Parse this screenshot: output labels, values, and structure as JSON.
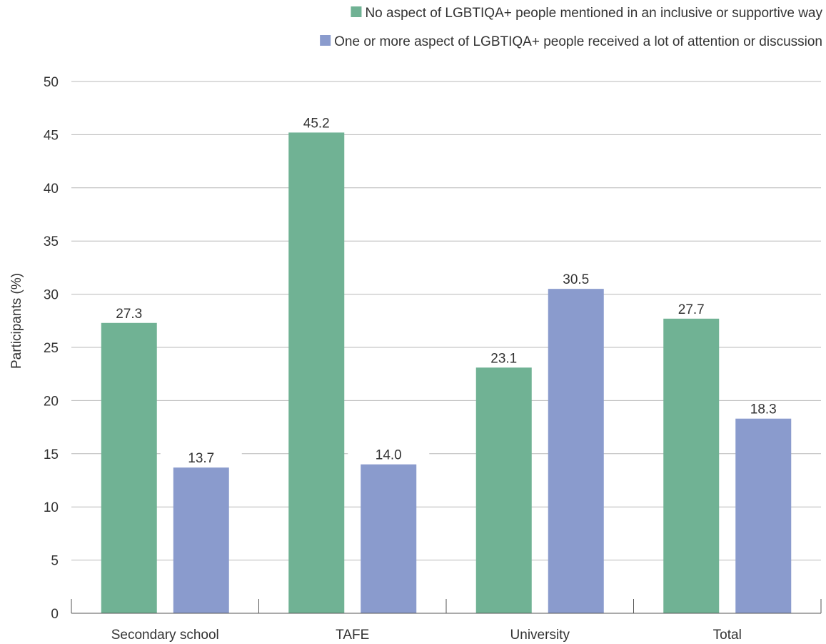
{
  "chart_data": {
    "type": "bar",
    "title": "",
    "xlabel": "",
    "ylabel": "Participants (%)",
    "ylim": [
      0,
      50
    ],
    "yticks": [
      0,
      5,
      10,
      15,
      20,
      25,
      30,
      35,
      40,
      45,
      50
    ],
    "grid": true,
    "legend_position": "top-right",
    "categories": [
      "Secondary school",
      "TAFE",
      "University",
      "Total"
    ],
    "series": [
      {
        "name": "No aspect of LGBTIQA+ people mentioned in an inclusive or supportive way",
        "color": "#70b294",
        "values": [
          27.3,
          45.2,
          23.1,
          27.7
        ],
        "labels": [
          "27.3",
          "45.2",
          "23.1",
          "27.7"
        ]
      },
      {
        "name": "One or more aspect of LGBTIQA+ people received a lot of attention or discussion",
        "color": "#8a9bcd",
        "values": [
          13.7,
          14.0,
          30.5,
          18.3
        ],
        "labels": [
          "13.7",
          "14.0",
          "30.5",
          "18.3"
        ]
      }
    ]
  }
}
